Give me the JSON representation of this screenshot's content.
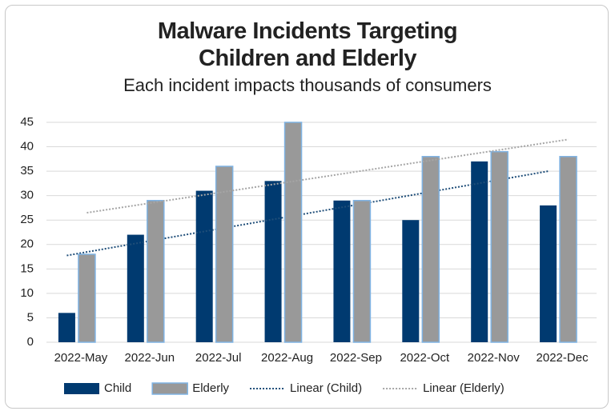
{
  "chart_data": {
    "type": "bar",
    "title": "Malware Incidents Targeting Children and Elderly",
    "subtitle": "Each incident impacts thousands of consumers",
    "categories": [
      "2022-May",
      "2022-Jun",
      "2022-Jul",
      "2022-Aug",
      "2022-Sep",
      "2022-Oct",
      "2022-Nov",
      "2022-Dec"
    ],
    "series": [
      {
        "name": "Child",
        "color": "#003a70",
        "values": [
          6,
          22,
          31,
          33,
          29,
          25,
          37,
          28
        ],
        "trendline": {
          "name": "Linear (Child)",
          "color": "#1f4e79"
        }
      },
      {
        "name": "Elderly",
        "color": "#999999",
        "border": "#7fb3e3",
        "values": [
          18,
          29,
          36,
          45,
          29,
          38,
          39,
          38
        ],
        "trendline": {
          "name": "Linear (Elderly)",
          "color": "#a6a6a6"
        }
      }
    ],
    "ylim": [
      0,
      45
    ],
    "yticks": [
      0,
      5,
      10,
      15,
      20,
      25,
      30,
      35,
      40,
      45
    ],
    "grid": true,
    "legend": "bottom"
  }
}
